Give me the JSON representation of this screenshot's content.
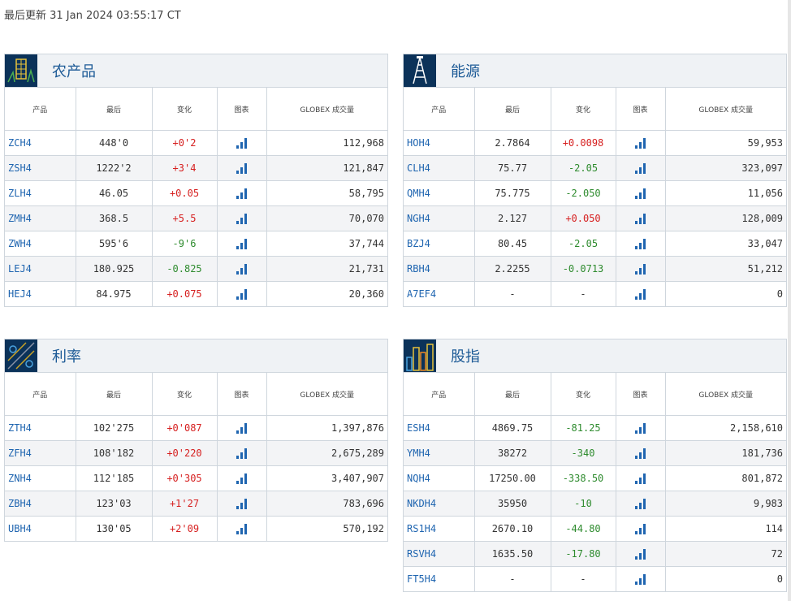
{
  "updated": "最后更新 31 Jan 2024 03:55:17 CT",
  "headers": {
    "product": "产品",
    "last": "最后",
    "change": "变化",
    "chart": "图表",
    "volume": "GLOBEX 成交量"
  },
  "panels": {
    "ag": {
      "title": "农产品",
      "rows": [
        {
          "sym": "ZCH4",
          "last": "448'0",
          "chg": "+0'2",
          "dir": "up",
          "vol": "112,968"
        },
        {
          "sym": "ZSH4",
          "last": "1222'2",
          "chg": "+3'4",
          "dir": "up",
          "vol": "121,847"
        },
        {
          "sym": "ZLH4",
          "last": "46.05",
          "chg": "+0.05",
          "dir": "up",
          "vol": "58,795"
        },
        {
          "sym": "ZMH4",
          "last": "368.5",
          "chg": "+5.5",
          "dir": "up",
          "vol": "70,070"
        },
        {
          "sym": "ZWH4",
          "last": "595'6",
          "chg": "-9'6",
          "dir": "down",
          "vol": "37,744"
        },
        {
          "sym": "LEJ4",
          "last": "180.925",
          "chg": "-0.825",
          "dir": "down",
          "vol": "21,731"
        },
        {
          "sym": "HEJ4",
          "last": "84.975",
          "chg": "+0.075",
          "dir": "up",
          "vol": "20,360"
        }
      ]
    },
    "energy": {
      "title": "能源",
      "rows": [
        {
          "sym": "HOH4",
          "last": "2.7864",
          "chg": "+0.0098",
          "dir": "up",
          "vol": "59,953"
        },
        {
          "sym": "CLH4",
          "last": "75.77",
          "chg": "-2.05",
          "dir": "down",
          "vol": "323,097"
        },
        {
          "sym": "QMH4",
          "last": "75.775",
          "chg": "-2.050",
          "dir": "down",
          "vol": "11,056"
        },
        {
          "sym": "NGH4",
          "last": "2.127",
          "chg": "+0.050",
          "dir": "up",
          "vol": "128,009"
        },
        {
          "sym": "BZJ4",
          "last": "80.45",
          "chg": "-2.05",
          "dir": "down",
          "vol": "33,047"
        },
        {
          "sym": "RBH4",
          "last": "2.2255",
          "chg": "-0.0713",
          "dir": "down",
          "vol": "51,212"
        },
        {
          "sym": "A7EF4",
          "last": "-",
          "chg": "-",
          "dir": "flat",
          "vol": "0"
        }
      ]
    },
    "rates": {
      "title": "利率",
      "rows": [
        {
          "sym": "ZTH4",
          "last": "102'275",
          "chg": "+0'087",
          "dir": "up",
          "vol": "1,397,876"
        },
        {
          "sym": "ZFH4",
          "last": "108'182",
          "chg": "+0'220",
          "dir": "up",
          "vol": "2,675,289"
        },
        {
          "sym": "ZNH4",
          "last": "112'185",
          "chg": "+0'305",
          "dir": "up",
          "vol": "3,407,907"
        },
        {
          "sym": "ZBH4",
          "last": "123'03",
          "chg": "+1'27",
          "dir": "up",
          "vol": "783,696"
        },
        {
          "sym": "UBH4",
          "last": "130'05",
          "chg": "+2'09",
          "dir": "up",
          "vol": "570,192"
        }
      ]
    },
    "equity": {
      "title": "股指",
      "rows": [
        {
          "sym": "ESH4",
          "last": "4869.75",
          "chg": "-81.25",
          "dir": "down",
          "vol": "2,158,610"
        },
        {
          "sym": "YMH4",
          "last": "38272",
          "chg": "-340",
          "dir": "down",
          "vol": "181,736"
        },
        {
          "sym": "NQH4",
          "last": "17250.00",
          "chg": "-338.50",
          "dir": "down",
          "vol": "801,872"
        },
        {
          "sym": "NKDH4",
          "last": "35950",
          "chg": "-10",
          "dir": "down",
          "vol": "9,983"
        },
        {
          "sym": "RS1H4",
          "last": "2670.10",
          "chg": "-44.80",
          "dir": "down",
          "vol": "114"
        },
        {
          "sym": "RSVH4",
          "last": "1635.50",
          "chg": "-17.80",
          "dir": "down",
          "vol": "72"
        },
        {
          "sym": "FT5H4",
          "last": "-",
          "chg": "-",
          "dir": "flat",
          "vol": "0"
        }
      ]
    }
  },
  "colors": {
    "up": "#d61f1f",
    "down": "#2e8b2e",
    "link": "#1f65b0",
    "header_bg": "#eff2f5",
    "icon_bg": "#0b3259"
  }
}
